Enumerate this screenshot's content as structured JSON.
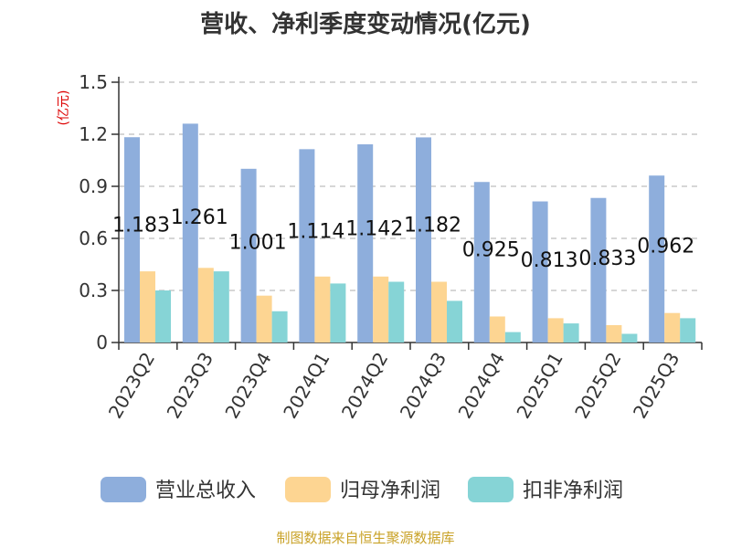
{
  "chart_data": {
    "type": "bar",
    "title": "营收、净利季度变动情况(亿元)",
    "ylabel": "(亿元)",
    "xlabel": "",
    "categories": [
      "2023Q2",
      "2023Q3",
      "2023Q4",
      "2024Q1",
      "2024Q2",
      "2024Q3",
      "2024Q4",
      "2025Q1",
      "2025Q2",
      "2025Q3"
    ],
    "yticks": [
      "0",
      "0.3",
      "0.6",
      "0.9",
      "1.2",
      "1.5"
    ],
    "ylim": [
      0,
      1.5
    ],
    "grid": true,
    "legend_position": "bottom",
    "series": [
      {
        "name": "营业总收入",
        "color": "#8eaedc",
        "values": [
          1.183,
          1.261,
          1.001,
          1.114,
          1.142,
          1.182,
          0.925,
          0.813,
          0.833,
          0.962
        ],
        "labels": [
          "1.183",
          "1.261",
          "1.001",
          "1.114",
          "1.142",
          "1.182",
          "0.925",
          "0.813",
          "0.833",
          "0.962"
        ]
      },
      {
        "name": "归母净利润",
        "color": "#fdd592",
        "values": [
          0.41,
          0.43,
          0.27,
          0.38,
          0.38,
          0.35,
          0.15,
          0.14,
          0.1,
          0.17
        ]
      },
      {
        "name": "扣非净利润",
        "color": "#86d4d6",
        "values": [
          0.3,
          0.41,
          0.18,
          0.34,
          0.35,
          0.24,
          0.06,
          0.11,
          0.05,
          0.14
        ]
      }
    ]
  },
  "footer": {
    "source": "制图数据来自恒生聚源数据库"
  }
}
